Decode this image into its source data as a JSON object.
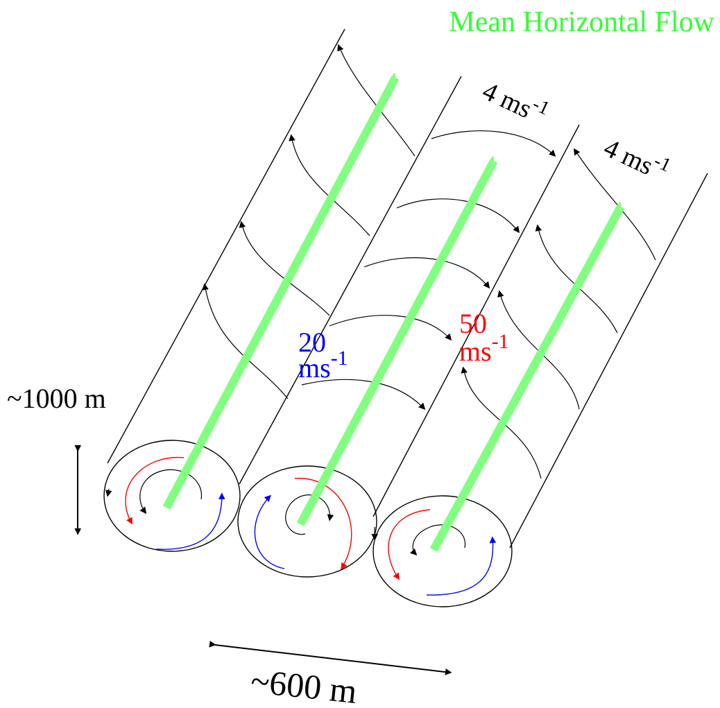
{
  "title": "Mean Horizontal Flow",
  "speed_labels": [
    {
      "number": "4",
      "unit": "ms",
      "exponent": "-1"
    },
    {
      "number": "4",
      "unit": "ms",
      "exponent": "-1"
    },
    {
      "number": "20",
      "unit": "ms",
      "exponent": "-1"
    },
    {
      "number": "50",
      "unit": "ms",
      "exponent": "-1"
    }
  ],
  "dimensions": {
    "height": "~1000 m",
    "width": "~600 m"
  }
}
